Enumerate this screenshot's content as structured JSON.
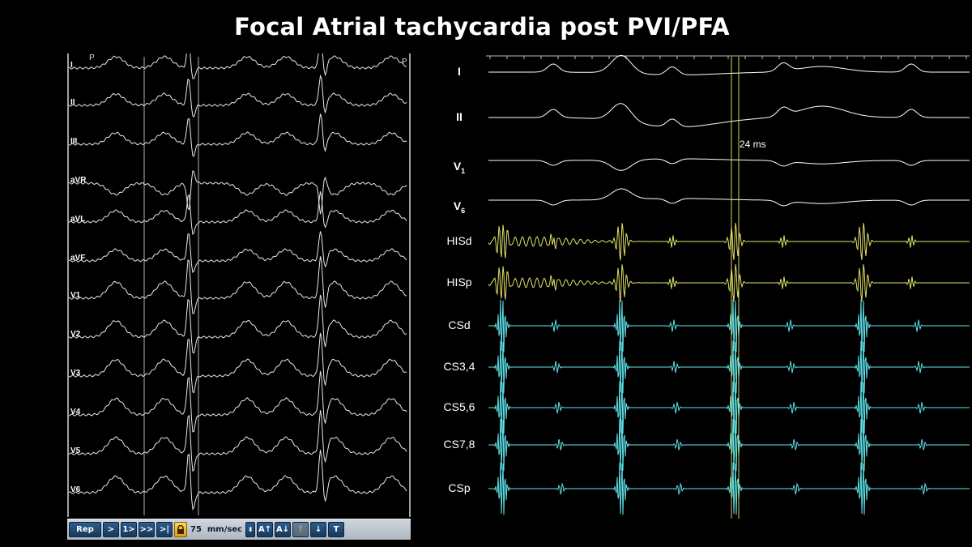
{
  "title": "Focal Atrial tachycardia post PVI/PFA",
  "ecg_panel": {
    "leads": [
      "I",
      "II",
      "III",
      "aVR",
      "aVL",
      "aVF",
      "V1",
      "V2",
      "V3",
      "V4",
      "V5",
      "V6"
    ],
    "markers": [
      "P",
      "P"
    ],
    "toolbar": {
      "buttons": [
        "Rep",
        ">",
        "1>",
        ">>",
        ">|"
      ],
      "speed": "75",
      "speed_unit": "mm/sec",
      "scale_buttons": [
        "A↑",
        "A↓",
        "↑",
        "↓",
        "T"
      ]
    }
  },
  "ep_panel": {
    "surface_leads": [
      {
        "name": "I",
        "sub": ""
      },
      {
        "name": "II",
        "sub": ""
      },
      {
        "name": "V",
        "sub": "1"
      },
      {
        "name": "V",
        "sub": "6"
      }
    ],
    "his_channels": [
      "HISd",
      "HISp"
    ],
    "cs_channels": [
      "CSd",
      "CS3,4",
      "CS5,6",
      "CS7,8",
      "CSp"
    ],
    "caliper_label": "24 ms",
    "colors": {
      "surface": "#ffffff",
      "his": "#e2e26a",
      "cs": "#5fe3ea",
      "caliper": "#d6d65a"
    }
  }
}
